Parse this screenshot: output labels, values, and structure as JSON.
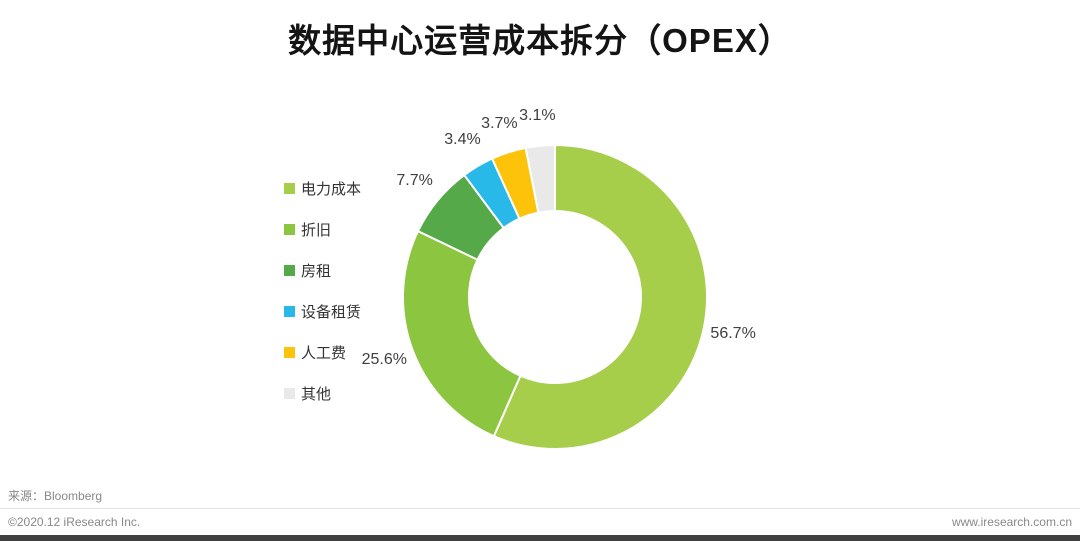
{
  "page": {
    "title": "数据中心运营成本拆分（OPEX）",
    "source": "来源：Bloomberg",
    "copyright": "©2020.12 iResearch Inc.",
    "website": "www.iresearch.com.cn"
  },
  "chart_data": {
    "type": "pie",
    "subtype": "donut",
    "title": "数据中心运营成本拆分（OPEX）",
    "legend_position": "left",
    "direction": "clockwise",
    "start_angle_deg": 0,
    "categories": [
      "电力成本",
      "折旧",
      "房租",
      "设备租赁",
      "人工费",
      "其他"
    ],
    "values": [
      56.7,
      25.6,
      7.7,
      3.4,
      3.7,
      3.1
    ],
    "labels": [
      "56.7%",
      "25.6%",
      "7.7%",
      "3.4%",
      "3.7%",
      "3.1%"
    ],
    "colors": [
      "#a6ce4b",
      "#8cc540",
      "#55a948",
      "#29b9e8",
      "#fdc30b",
      "#e9e9e9"
    ]
  }
}
